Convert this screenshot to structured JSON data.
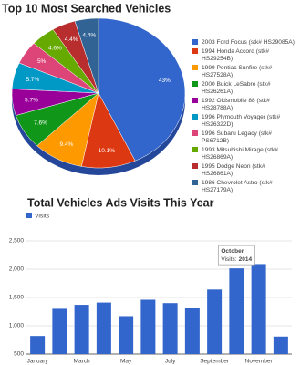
{
  "chart_data": [
    {
      "type": "pie",
      "title": "Top 10 Most Searched Vehicles",
      "labels": [
        "2003 Ford Focus (stk# HS29085A)",
        "1994 Honda Accord (stk# HS29254B)",
        "1999 Pontiac Sunfire (stk# HS27528A)",
        "2000 Buick LeSabre (stk# HS26261A)",
        "1992 Oldsmobile 88 (stk# HS28788A)",
        "1996 Plymouth Voyager (stk# HS26322D)",
        "1996 Subaru Legacy (stk# PS6712B)",
        "1993 Mitsubishi Mirage (stk# HS26869A)",
        "1995 Dodge Neon (stk# HS26861A)",
        "1986 Chevrolet Astro (stk# HS27179A)"
      ],
      "values": [
        43,
        10.1,
        9.4,
        7.6,
        5.7,
        5.7,
        5,
        4.6,
        4.4,
        4.4
      ],
      "value_labels": [
        "43%",
        "10.1%",
        "9.4%",
        "7.6%",
        "5.7%",
        "5.7%",
        "5%",
        "4.6%",
        "4.4%",
        "4.4%"
      ],
      "colors": [
        "#3366cc",
        "#dc3912",
        "#ff9900",
        "#109618",
        "#990099",
        "#0099c6",
        "#dd4477",
        "#66aa00",
        "#b82e2e",
        "#316395"
      ],
      "legend": "right"
    },
    {
      "type": "bar",
      "title": "Total Vehicles Ads Visits This Year",
      "categories": [
        "January",
        null,
        "March",
        null,
        "May",
        null,
        "July",
        null,
        "September",
        null,
        "November",
        null
      ],
      "series": [
        {
          "name": "Visits",
          "color": "#3366cc",
          "values": [
            820,
            1300,
            1370,
            1410,
            1170,
            1460,
            1400,
            1310,
            1640,
            2014,
            2090,
            810
          ]
        }
      ],
      "ylim": [
        500,
        2500
      ],
      "yticks": [
        {
          "value": 500,
          "label": "500"
        },
        {
          "value": 1000,
          "label": "1,000"
        },
        {
          "value": 1500,
          "label": "1,500"
        },
        {
          "value": 2000,
          "label": "2,000"
        },
        {
          "value": 2500,
          "label": "2,500"
        }
      ],
      "grid": true,
      "legend": "top-left",
      "tooltip": {
        "title": "October",
        "text": "Visits:"
      }
    }
  ]
}
